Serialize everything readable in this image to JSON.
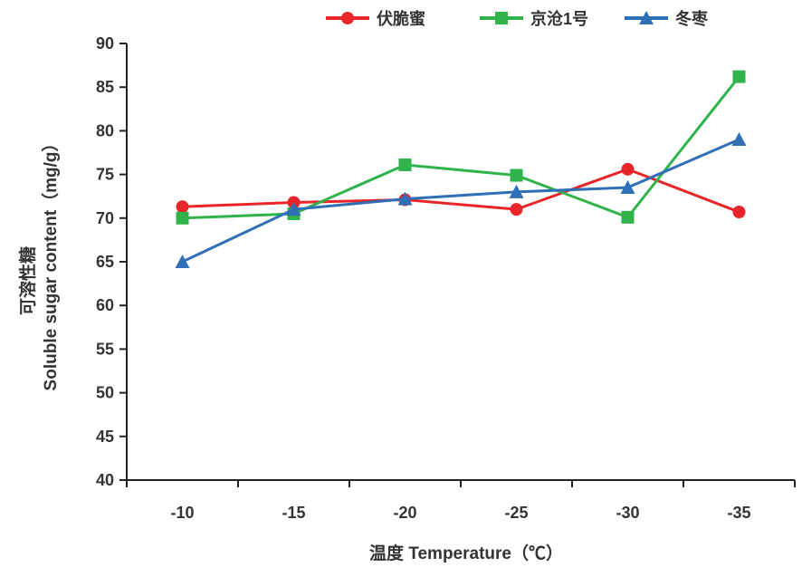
{
  "chart_data": {
    "type": "line",
    "categories": [
      "-10",
      "-15",
      "-20",
      "-25",
      "-30",
      "-35"
    ],
    "ylim": [
      40,
      90
    ],
    "yticks": [
      "40",
      "45",
      "50",
      "55",
      "60",
      "65",
      "70",
      "75",
      "80",
      "85",
      "90"
    ],
    "xlabel": "温度 Temperature（℃）",
    "ylabel_cn": "可溶性糖",
    "ylabel_en": "Soluble sugar content（mg/g）",
    "grid": false,
    "legend_position": "top-right",
    "series": [
      {
        "name": "伏脆蜜",
        "color": "#e8262a",
        "marker": "circle",
        "values": [
          71.3,
          71.8,
          72.1,
          71.0,
          75.6,
          70.7
        ]
      },
      {
        "name": "京沧1号",
        "color": "#2fb34a",
        "marker": "square",
        "values": [
          70.0,
          70.5,
          76.1,
          74.9,
          70.1,
          86.2
        ]
      },
      {
        "name": "冬枣",
        "color": "#2f6fb6",
        "marker": "triangle",
        "values": [
          65.0,
          71.0,
          72.2,
          73.0,
          73.5,
          79.0
        ]
      }
    ]
  }
}
